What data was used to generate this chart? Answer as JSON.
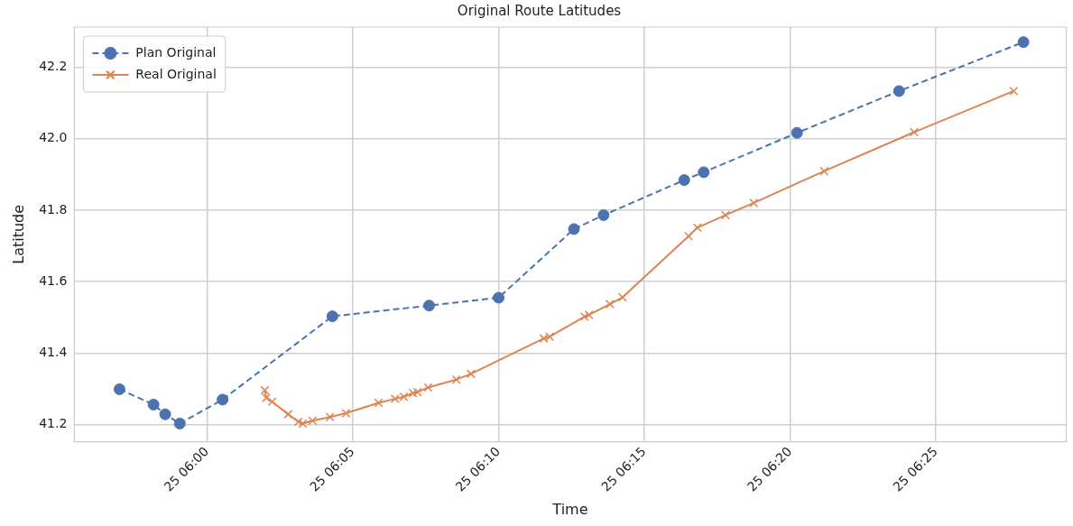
{
  "chart_data": {
    "type": "line",
    "title": "Original Route Latitudes",
    "xlabel": "Time",
    "ylabel": "Latitude",
    "xlim": [
      "--01-25T05:55:27",
      "--01-25T06:29:28"
    ],
    "ylim": [
      41.152,
      42.312
    ],
    "xticks": [
      {
        "value": "--01-25T06:00",
        "label": "25 06:00"
      },
      {
        "value": "--01-25T06:05",
        "label": "25 06:05"
      },
      {
        "value": "--01-25T06:10",
        "label": "25 06:10"
      },
      {
        "value": "--01-25T06:15",
        "label": "25 06:15"
      },
      {
        "value": "--01-25T06:20",
        "label": "25 06:20"
      },
      {
        "value": "--01-25T06:25",
        "label": "25 06:25"
      }
    ],
    "yticks": [
      {
        "value": 41.2,
        "label": "41.2"
      },
      {
        "value": 41.4,
        "label": "41.4"
      },
      {
        "value": 41.6,
        "label": "41.6"
      },
      {
        "value": 41.8,
        "label": "41.8"
      },
      {
        "value": 42.0,
        "label": "42.0"
      },
      {
        "value": 42.2,
        "label": "42.2"
      }
    ],
    "grid": true,
    "legend": "top left",
    "series": [
      {
        "name": "Plan Original",
        "color": "#4c72b0",
        "marker": "circle",
        "line_style": "dashed",
        "x": [
          "--01-25T05:57:00",
          "--01-25T05:58:10",
          "--01-25T05:58:34",
          "--01-25T05:59:04",
          "--01-25T06:00:32",
          "--01-25T06:04:18",
          "--01-25T06:07:37",
          "--01-25T06:10:00",
          "--01-25T06:12:35",
          "--01-25T06:13:36",
          "--01-25T06:16:22",
          "--01-25T06:17:02",
          "--01-25T06:20:14",
          "--01-25T06:23:44",
          "--01-25T06:28:00"
        ],
        "values": [
          41.299,
          41.256,
          41.229,
          41.203,
          41.27,
          41.503,
          41.533,
          41.555,
          41.747,
          41.786,
          41.884,
          41.906,
          42.016,
          42.133,
          42.27
        ]
      },
      {
        "name": "Real Original",
        "color": "#dd8452",
        "marker": "cross",
        "line_style": "solid",
        "x": [
          "--01-25T06:01:59",
          "--01-25T06:02:02",
          "--01-25T06:02:14",
          "--01-25T06:02:47",
          "--01-25T06:03:08",
          "--01-25T06:03:17",
          "--01-25T06:03:37",
          "--01-25T06:04:13",
          "--01-25T06:04:46",
          "--01-25T06:05:53",
          "--01-25T06:06:27",
          "--01-25T06:06:45",
          "--01-25T06:07:04",
          "--01-25T06:07:13",
          "--01-25T06:07:35",
          "--01-25T06:08:33",
          "--01-25T06:09:03",
          "--01-25T06:11:33",
          "--01-25T06:11:45",
          "--01-25T06:12:57",
          "--01-25T06:13:06",
          "--01-25T06:13:49",
          "--01-25T06:14:15",
          "--01-25T06:16:31",
          "--01-25T06:16:49",
          "--01-25T06:17:47",
          "--01-25T06:18:45",
          "--01-25T06:21:10",
          "--01-25T06:24:15",
          "--01-25T06:27:40"
        ],
        "values": [
          41.296,
          41.275,
          41.264,
          41.229,
          41.208,
          41.203,
          41.211,
          41.221,
          41.232,
          41.261,
          41.272,
          41.278,
          41.288,
          41.291,
          41.304,
          41.326,
          41.342,
          41.441,
          41.446,
          41.502,
          41.507,
          41.537,
          41.556,
          41.727,
          41.751,
          41.786,
          41.82,
          41.909,
          42.018,
          42.133
        ]
      }
    ]
  }
}
